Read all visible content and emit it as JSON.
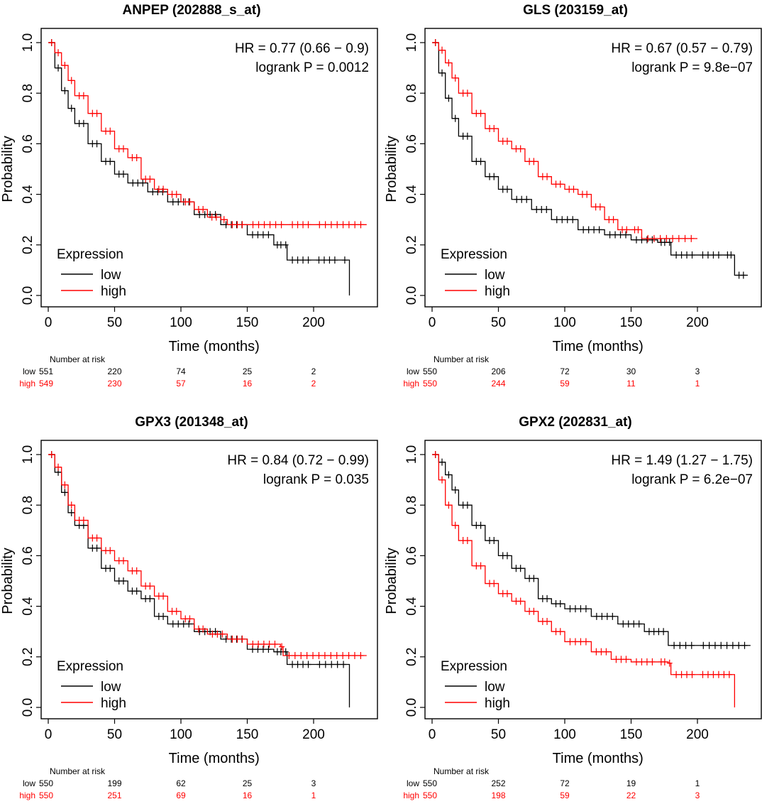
{
  "colors": {
    "low": "#000000",
    "high": "#ff0000"
  },
  "chart_data": [
    {
      "type": "line",
      "title": "ANPEP (202888_s_at)",
      "hr_text": "HR = 0.77 (0.66 − 0.9)",
      "p_text": "logrank P = 0.0012",
      "xlabel": "Time (months)",
      "ylabel": "Probability",
      "xlim": [
        0,
        240
      ],
      "ylim": [
        0,
        1.0
      ],
      "xticks": [
        "0",
        "50",
        "100",
        "150",
        "200"
      ],
      "yticks": [
        "0.0",
        "0.2",
        "0.4",
        "0.6",
        "0.8",
        "1.0"
      ],
      "legend": {
        "title": "Expression",
        "entries": [
          "low",
          "high"
        ],
        "position": "bottom-left"
      },
      "series": [
        {
          "name": "low",
          "x": [
            0,
            5,
            10,
            15,
            20,
            30,
            40,
            50,
            60,
            75,
            90,
            110,
            130,
            150,
            170,
            178,
            180,
            200,
            220,
            227,
            227
          ],
          "y": [
            1.0,
            0.9,
            0.81,
            0.74,
            0.68,
            0.6,
            0.53,
            0.48,
            0.445,
            0.41,
            0.37,
            0.32,
            0.28,
            0.24,
            0.2,
            0.2,
            0.14,
            0.14,
            0.14,
            0.14,
            0.0
          ]
        },
        {
          "name": "high",
          "x": [
            0,
            5,
            10,
            15,
            20,
            30,
            40,
            50,
            60,
            70,
            80,
            90,
            100,
            110,
            120,
            130,
            135,
            150,
            180,
            200,
            240
          ],
          "y": [
            1.0,
            0.96,
            0.91,
            0.85,
            0.79,
            0.72,
            0.65,
            0.58,
            0.545,
            0.46,
            0.42,
            0.4,
            0.37,
            0.34,
            0.31,
            0.3,
            0.28,
            0.28,
            0.28,
            0.28,
            0.28
          ]
        }
      ],
      "risk": {
        "heading": "Number at risk",
        "times": [
          0,
          50,
          100,
          150,
          200
        ],
        "rows": [
          {
            "label": "low",
            "values": [
              "551",
              "220",
              "74",
              "25",
              "2"
            ]
          },
          {
            "label": "high",
            "values": [
              "549",
              "230",
              "57",
              "16",
              "2"
            ]
          }
        ]
      }
    },
    {
      "type": "line",
      "title": "GLS (203159_at)",
      "hr_text": "HR = 0.67 (0.57 − 0.79)",
      "p_text": "logrank P = 9.8e−07",
      "xlabel": "Time (months)",
      "ylabel": "Probability",
      "xlim": [
        0,
        240
      ],
      "ylim": [
        0,
        1.0
      ],
      "xticks": [
        "0",
        "50",
        "100",
        "150",
        "200"
      ],
      "yticks": [
        "0.0",
        "0.2",
        "0.4",
        "0.6",
        "0.8",
        "1.0"
      ],
      "legend": {
        "title": "Expression",
        "entries": [
          "low",
          "high"
        ],
        "position": "bottom-left"
      },
      "series": [
        {
          "name": "low",
          "x": [
            0,
            5,
            10,
            15,
            20,
            30,
            40,
            50,
            60,
            75,
            90,
            110,
            130,
            150,
            170,
            178,
            180,
            200,
            220,
            228,
            228,
            238
          ],
          "y": [
            1.0,
            0.88,
            0.78,
            0.7,
            0.63,
            0.53,
            0.47,
            0.42,
            0.38,
            0.34,
            0.3,
            0.26,
            0.24,
            0.22,
            0.21,
            0.21,
            0.16,
            0.16,
            0.16,
            0.16,
            0.08,
            0.08
          ]
        },
        {
          "name": "high",
          "x": [
            0,
            5,
            10,
            15,
            20,
            30,
            40,
            50,
            60,
            70,
            80,
            90,
            100,
            110,
            120,
            130,
            140,
            150,
            158,
            158,
            200
          ],
          "y": [
            1.0,
            0.97,
            0.92,
            0.86,
            0.8,
            0.72,
            0.66,
            0.61,
            0.58,
            0.53,
            0.47,
            0.44,
            0.42,
            0.4,
            0.35,
            0.3,
            0.26,
            0.26,
            0.26,
            0.225,
            0.225
          ]
        }
      ],
      "risk": {
        "heading": "Number at risk",
        "times": [
          0,
          50,
          100,
          150,
          200
        ],
        "rows": [
          {
            "label": "low",
            "values": [
              "550",
              "206",
              "72",
              "30",
              "3"
            ]
          },
          {
            "label": "high",
            "values": [
              "550",
              "244",
              "59",
              "11",
              "1"
            ]
          }
        ]
      }
    },
    {
      "type": "line",
      "title": "GPX3 (201348_at)",
      "hr_text": "HR = 0.84 (0.72 − 0.99)",
      "p_text": "logrank P = 0.035",
      "xlabel": "Time (months)",
      "ylabel": "Probability",
      "xlim": [
        0,
        240
      ],
      "ylim": [
        0,
        1.0
      ],
      "xticks": [
        "0",
        "50",
        "100",
        "150",
        "200"
      ],
      "yticks": [
        "0.0",
        "0.2",
        "0.4",
        "0.6",
        "0.8",
        "1.0"
      ],
      "legend": {
        "title": "Expression",
        "entries": [
          "low",
          "high"
        ],
        "position": "bottom-left"
      },
      "series": [
        {
          "name": "low",
          "x": [
            0,
            5,
            10,
            15,
            20,
            30,
            40,
            50,
            60,
            70,
            80,
            90,
            110,
            130,
            150,
            170,
            178,
            180,
            200,
            227,
            227
          ],
          "y": [
            1.0,
            0.93,
            0.85,
            0.77,
            0.72,
            0.63,
            0.55,
            0.5,
            0.46,
            0.43,
            0.36,
            0.33,
            0.3,
            0.27,
            0.23,
            0.22,
            0.22,
            0.17,
            0.17,
            0.17,
            0.0
          ]
        },
        {
          "name": "high",
          "x": [
            0,
            5,
            10,
            15,
            20,
            30,
            40,
            50,
            60,
            70,
            80,
            90,
            100,
            110,
            120,
            135,
            150,
            175,
            177,
            177,
            240
          ],
          "y": [
            1.0,
            0.95,
            0.88,
            0.8,
            0.74,
            0.67,
            0.62,
            0.58,
            0.54,
            0.48,
            0.44,
            0.38,
            0.35,
            0.31,
            0.29,
            0.27,
            0.25,
            0.24,
            0.24,
            0.205,
            0.205
          ]
        }
      ],
      "risk": {
        "heading": "Number at risk",
        "times": [
          0,
          50,
          100,
          150,
          200
        ],
        "rows": [
          {
            "label": "low",
            "values": [
              "550",
              "199",
              "62",
              "25",
              "3"
            ]
          },
          {
            "label": "high",
            "values": [
              "550",
              "251",
              "69",
              "16",
              "1"
            ]
          }
        ]
      }
    },
    {
      "type": "line",
      "title": "GPX2 (202831_at)",
      "hr_text": "HR = 1.49 (1.27 − 1.75)",
      "p_text": "logrank P = 6.2e−07",
      "xlabel": "Time (months)",
      "ylabel": "Probability",
      "xlim": [
        0,
        240
      ],
      "ylim": [
        0,
        1.0
      ],
      "xticks": [
        "0",
        "50",
        "100",
        "150",
        "200"
      ],
      "yticks": [
        "0.0",
        "0.2",
        "0.4",
        "0.6",
        "0.8",
        "1.0"
      ],
      "legend": {
        "title": "Expression",
        "entries": [
          "low",
          "high"
        ],
        "position": "bottom-left"
      },
      "series": [
        {
          "name": "low",
          "x": [
            0,
            5,
            10,
            15,
            20,
            30,
            40,
            50,
            60,
            70,
            80,
            90,
            100,
            120,
            140,
            160,
            178,
            178,
            200,
            240
          ],
          "y": [
            1.0,
            0.97,
            0.92,
            0.86,
            0.8,
            0.72,
            0.66,
            0.6,
            0.55,
            0.51,
            0.43,
            0.41,
            0.39,
            0.36,
            0.33,
            0.3,
            0.29,
            0.245,
            0.245,
            0.245
          ]
        },
        {
          "name": "high",
          "x": [
            0,
            5,
            10,
            15,
            20,
            30,
            40,
            50,
            60,
            70,
            80,
            90,
            100,
            120,
            135,
            150,
            170,
            178,
            180,
            200,
            228,
            228
          ],
          "y": [
            1.0,
            0.9,
            0.8,
            0.72,
            0.66,
            0.56,
            0.49,
            0.45,
            0.42,
            0.38,
            0.34,
            0.3,
            0.26,
            0.22,
            0.19,
            0.18,
            0.18,
            0.175,
            0.13,
            0.13,
            0.13,
            0.0
          ]
        }
      ],
      "risk": {
        "heading": "Number at risk",
        "times": [
          0,
          50,
          100,
          150,
          200
        ],
        "rows": [
          {
            "label": "low",
            "values": [
              "550",
              "252",
              "72",
              "19",
              "1"
            ]
          },
          {
            "label": "high",
            "values": [
              "550",
              "198",
              "59",
              "22",
              "3"
            ]
          }
        ]
      }
    }
  ]
}
